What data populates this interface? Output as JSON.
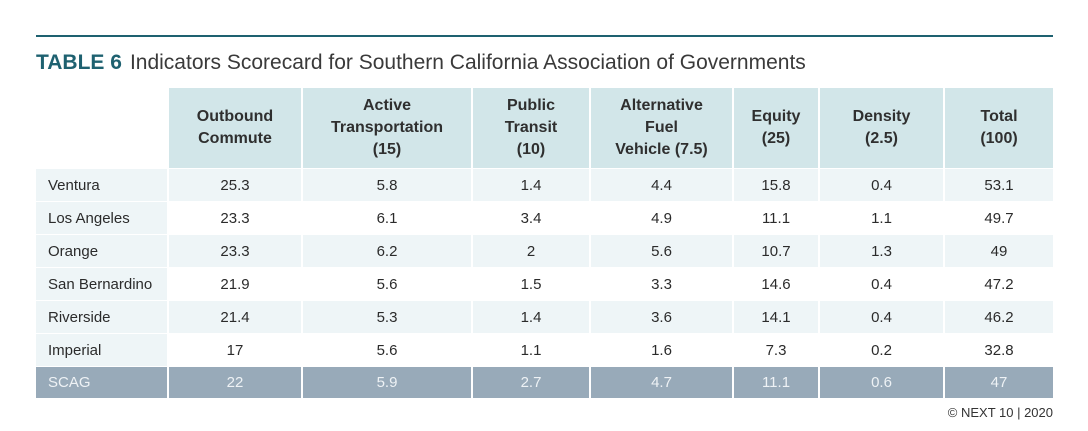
{
  "table": {
    "label": "TABLE 6",
    "title": "Indicators Scorecard for Southern California Association of Governments",
    "columns": [
      {
        "lines": [
          "Outbound",
          "Commute"
        ]
      },
      {
        "lines": [
          "Active",
          "Transportation",
          "(15)"
        ]
      },
      {
        "lines": [
          "Public",
          "Transit",
          "(10)"
        ]
      },
      {
        "lines": [
          "Alternative",
          "Fuel",
          "Vehicle (7.5)"
        ]
      },
      {
        "lines": [
          "Equity",
          "(25)"
        ]
      },
      {
        "lines": [
          "Density",
          "(2.5)"
        ]
      },
      {
        "lines": [
          "Total",
          "(100)"
        ]
      }
    ],
    "rows": [
      {
        "name": "Ventura",
        "values": [
          "25.3",
          "5.8",
          "1.4",
          "4.4",
          "15.8",
          "0.4",
          "53.1"
        ]
      },
      {
        "name": "Los Angeles",
        "values": [
          "23.3",
          "6.1",
          "3.4",
          "4.9",
          "11.1",
          "1.1",
          "49.7"
        ]
      },
      {
        "name": "Orange",
        "values": [
          "23.3",
          "6.2",
          "2",
          "5.6",
          "10.7",
          "1.3",
          "49"
        ]
      },
      {
        "name": "San Bernardino",
        "values": [
          "21.9",
          "5.6",
          "1.5",
          "3.3",
          "14.6",
          "0.4",
          "47.2"
        ]
      },
      {
        "name": "Riverside",
        "values": [
          "21.4",
          "5.3",
          "1.4",
          "3.6",
          "14.1",
          "0.4",
          "46.2"
        ]
      },
      {
        "name": "Imperial",
        "values": [
          "17",
          "5.6",
          "1.1",
          "1.6",
          "7.3",
          "0.2",
          "32.8"
        ]
      }
    ],
    "summary": {
      "name": "SCAG",
      "values": [
        "22",
        "5.9",
        "2.7",
        "4.7",
        "11.1",
        "0.6",
        "47"
      ]
    }
  },
  "footer": {
    "credit": "© NEXT 10 | 2020"
  },
  "colors": {
    "accent": "#1e6170",
    "header_fill": "#d2e6e9",
    "row_fill": "#eef5f7",
    "summary_fill": "#98aab9"
  }
}
